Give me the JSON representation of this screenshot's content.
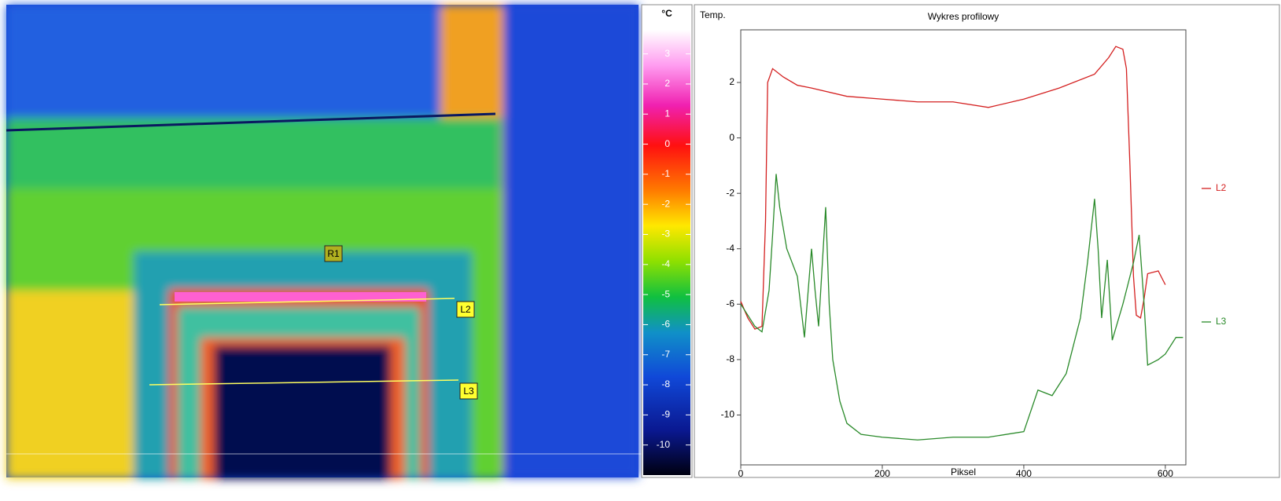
{
  "thermal_image": {
    "markers": [
      "R1",
      "L2",
      "L3"
    ]
  },
  "color_scale": {
    "unit": "°C",
    "lim": [
      -11,
      3.8
    ],
    "ticks": [
      3,
      2,
      1,
      0,
      -1,
      -2,
      -3,
      -4,
      -5,
      -6,
      -7,
      -8,
      -9,
      -10
    ]
  },
  "chart_data": {
    "type": "line",
    "title": "Wykres profilowy",
    "y_label": "Temp.",
    "x_label": "Piksel",
    "xlim": [
      0,
      629
    ],
    "ylim": [
      -11.8,
      3.9
    ],
    "xticks": [
      0,
      200,
      400,
      600
    ],
    "yticks": [
      2,
      0,
      -2,
      -4,
      -6,
      -8,
      -10
    ],
    "legend": "right",
    "series": [
      {
        "name": "L2",
        "color": "#d42020",
        "x": [
          0,
          10,
          20,
          30,
          35,
          38,
          45,
          60,
          80,
          100,
          150,
          200,
          250,
          300,
          350,
          400,
          450,
          500,
          520,
          530,
          540,
          545,
          550,
          555,
          559,
          565,
          570,
          575,
          590,
          600
        ],
        "values": [
          -5.9,
          -6.5,
          -6.9,
          -6.8,
          -3,
          2.0,
          2.5,
          2.2,
          1.9,
          1.8,
          1.5,
          1.4,
          1.3,
          1.3,
          1.1,
          1.4,
          1.8,
          2.3,
          2.9,
          3.3,
          3.2,
          2.5,
          -1,
          -5,
          -6.4,
          -6.5,
          -5.8,
          -4.9,
          -4.8,
          -5.3
        ]
      },
      {
        "name": "L3",
        "color": "#2a8a2a",
        "x": [
          0,
          10,
          20,
          30,
          40,
          45,
          50,
          55,
          65,
          80,
          90,
          100,
          105,
          110,
          120,
          125,
          130,
          140,
          150,
          170,
          200,
          250,
          300,
          350,
          400,
          420,
          440,
          460,
          480,
          490,
          500,
          505,
          510,
          518,
          525,
          540,
          555,
          563,
          570,
          575,
          590,
          600,
          615,
          625
        ],
        "values": [
          -6.0,
          -6.4,
          -6.8,
          -7.0,
          -5.5,
          -3.5,
          -1.3,
          -2.5,
          -4,
          -5,
          -7.2,
          -4.0,
          -5.5,
          -6.8,
          -2.5,
          -6,
          -8,
          -9.5,
          -10.3,
          -10.7,
          -10.8,
          -10.9,
          -10.8,
          -10.8,
          -10.6,
          -9.1,
          -9.3,
          -8.5,
          -6.5,
          -4.5,
          -2.2,
          -4,
          -6.5,
          -4.4,
          -7.3,
          -6,
          -4.5,
          -3.5,
          -6,
          -8.2,
          -8.0,
          -7.8,
          -7.2,
          -7.2
        ]
      }
    ]
  }
}
